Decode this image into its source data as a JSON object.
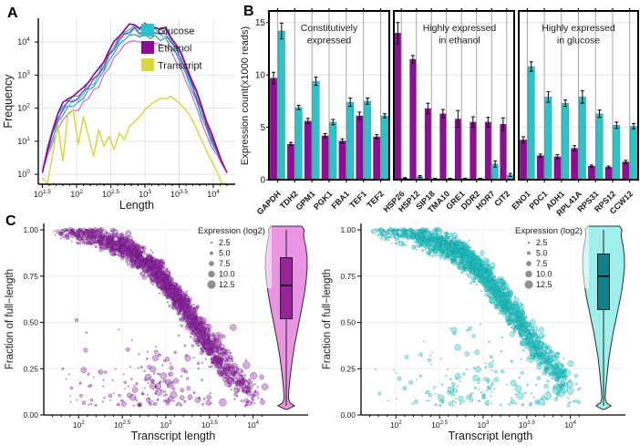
{
  "panels": {
    "a": "A",
    "b": "B",
    "c": "C"
  },
  "colors": {
    "glucose": "#29c4c9",
    "ethanol": "#8f0d96",
    "transcript": "#d6d83f",
    "scatter_ethanol_fill": "#9333a8",
    "scatter_ethanol_stroke": "#5e0a70",
    "scatter_glucose_fill": "#2ec9c9",
    "scatter_glucose_stroke": "#0a9396",
    "violin_ethanol_fill": "#eb94e4",
    "violin_ethanol_box": "#96249b",
    "violin_glucose_fill": "#9ff0ea",
    "violin_glucose_box": "#147f86",
    "legend_dot": "#7d7d7d",
    "grid_light": "#e4e4e4",
    "grid_dark": "#9e9e9e",
    "axis": "#000000"
  },
  "panel_b": {
    "ylabel": "Expression count(x1000 reads)",
    "yticks": [
      0,
      5,
      10,
      15
    ],
    "ylim": [
      0,
      15.5
    ],
    "series_names": [
      "Ethanol",
      "Glucose"
    ]
  },
  "chart_data": [
    {
      "id": "panel_a_read_length_distribution",
      "type": "line",
      "xlabel": "Length",
      "ylabel": "Frequency",
      "x_log10_start": 1.5,
      "x_log10_step": 0.075,
      "n_points": 37,
      "xlim_log10": [
        1.44,
        4.32
      ],
      "ylim_log10": [
        -0.3,
        4.72
      ],
      "xticks_exp": [
        "1.5",
        "2",
        "2.5",
        "3",
        "3.5",
        "4"
      ],
      "yticks_exp": [
        "0",
        "1",
        "2",
        "3",
        "4"
      ],
      "legend": [
        {
          "label": "Glucose",
          "color_key": "glucose"
        },
        {
          "label": "Ethanol",
          "color_key": "ethanol"
        },
        {
          "label": "Transcript",
          "color_key": "transcript"
        }
      ],
      "base_log10_frequency": [
        0.05,
        0.75,
        1.35,
        1.8,
        2.1,
        2.28,
        2.36,
        2.42,
        2.6,
        2.8,
        2.95,
        3.15,
        3.42,
        3.7,
        3.95,
        4.18,
        4.35,
        4.47,
        4.5,
        4.42,
        4.5,
        4.38,
        4.46,
        4.33,
        4.38,
        4.16,
        3.92,
        3.62,
        3.28,
        2.9,
        2.48,
        2.05,
        1.62,
        1.2,
        0.78,
        0.38,
        0.05
      ],
      "series": [
        {
          "name": "Glucose rep 1",
          "color": "#1fb7bd",
          "width": 1.3,
          "offset": -0.05,
          "amp": 0.06,
          "freq": 2.1,
          "phase": 1.1
        },
        {
          "name": "Glucose rep 2",
          "color": "#2ecfd2",
          "width": 1.1,
          "offset": -0.16,
          "amp": 0.08,
          "freq": 2.7,
          "phase": 3.3
        },
        {
          "name": "Glucose rep 3",
          "color": "#179aa8",
          "width": 1.1,
          "offset": -0.27,
          "amp": 0.07,
          "freq": 3.2,
          "phase": 5.2
        },
        {
          "name": "Ethanol rep 3",
          "color": "#c94fc0",
          "width": 1.0,
          "offset": -0.45,
          "amp": 0.06,
          "freq": 2.9,
          "phase": 4.1
        },
        {
          "name": "Ethanol rep 2",
          "color": "#a81fae",
          "width": 1.1,
          "offset": -0.12,
          "amp": 0.07,
          "freq": 2.4,
          "phase": 2.2
        },
        {
          "name": "Ethanol rep 1",
          "color": "#8f0d96",
          "width": 1.7,
          "offset": 0.03,
          "amp": 0.05,
          "freq": 1.9,
          "phase": 0.6
        }
      ],
      "transcript_series": {
        "name": "Transcript",
        "y_log10": [
          -0.1,
          -0.3,
          0.6,
          1.5,
          0.4,
          1.85,
          1.95,
          0.9,
          1.75,
          1.15,
          0.55,
          1.35,
          0.85,
          1.15,
          0.75,
          1.25,
          1.05,
          1.45,
          1.6,
          1.75,
          1.95,
          2.1,
          2.2,
          2.3,
          2.28,
          2.35,
          2.25,
          2.1,
          1.95,
          1.7,
          1.4,
          1.05,
          0.7,
          0.4,
          0.1,
          -0.3,
          -0.3
        ]
      }
    },
    {
      "id": "panel_b_constitutive",
      "type": "bar",
      "title_lines": [
        "Constitutively",
        "expressed"
      ],
      "categories": [
        "GAPDH",
        "TDH2",
        "GPM1",
        "PGK1",
        "FBA1",
        "TEF1",
        "TEF2"
      ],
      "series": [
        {
          "name": "Ethanol",
          "color_key": "ethanol",
          "values": [
            9.7,
            3.4,
            5.6,
            4.2,
            3.7,
            6.1,
            4.1
          ],
          "errors": [
            0.55,
            0.15,
            0.25,
            0.2,
            0.2,
            0.35,
            0.2
          ]
        },
        {
          "name": "Glucose",
          "color_key": "glucose",
          "values": [
            14.2,
            6.9,
            9.4,
            5.5,
            7.4,
            7.5,
            6.1
          ],
          "errors": [
            0.75,
            0.2,
            0.4,
            0.25,
            0.4,
            0.3,
            0.2
          ]
        }
      ]
    },
    {
      "id": "panel_b_ethanol_high",
      "type": "bar",
      "title_lines": [
        "Highly expressed",
        "in ethanol"
      ],
      "categories": [
        "HSP26",
        "HSP12",
        "SIP18",
        "TMA10",
        "GRE1",
        "DDR2",
        "HOR7",
        "CIT2"
      ],
      "series": [
        {
          "name": "Ethanol",
          "color_key": "ethanol",
          "values": [
            14.0,
            11.5,
            6.8,
            6.3,
            5.8,
            5.5,
            5.5,
            5.3
          ],
          "errors": [
            1.0,
            0.35,
            0.5,
            0.4,
            0.8,
            0.5,
            0.45,
            0.6
          ]
        },
        {
          "name": "Glucose",
          "color_key": "glucose",
          "values": [
            0.15,
            0.3,
            0.1,
            0.1,
            0.1,
            0.1,
            1.5,
            0.45
          ],
          "errors": [
            0.05,
            0.1,
            0.04,
            0.04,
            0.04,
            0.04,
            0.3,
            0.15
          ]
        }
      ]
    },
    {
      "id": "panel_b_glucose_high",
      "type": "bar",
      "title_lines": [
        "Highly expressed",
        "in glucose"
      ],
      "categories": [
        "ENO1",
        "PDC1",
        "ADH1",
        "RPL41A",
        "RPS31",
        "RPS12",
        "CCW12"
      ],
      "series": [
        {
          "name": "Ethanol",
          "color_key": "ethanol",
          "values": [
            3.8,
            2.3,
            2.2,
            3.0,
            1.3,
            1.2,
            1.7
          ],
          "errors": [
            0.3,
            0.15,
            0.2,
            0.25,
            0.1,
            0.1,
            0.15
          ]
        },
        {
          "name": "Glucose",
          "color_key": "glucose",
          "values": [
            10.8,
            7.9,
            7.3,
            7.9,
            6.3,
            5.2,
            5.1
          ],
          "errors": [
            0.45,
            0.5,
            0.3,
            0.6,
            0.35,
            0.3,
            0.25
          ]
        }
      ]
    },
    {
      "id": "panel_c_ethanol",
      "type": "scatter+violin",
      "condition": "Ethanol",
      "xlabel": "Transcript length",
      "ylabel": "Fraction of full−length",
      "xticks_exp": [
        "2",
        "2.5",
        "3",
        "3.5",
        "4"
      ],
      "yticks": [
        "0.00",
        "0.25",
        "0.50",
        "0.75",
        "1.00"
      ],
      "xlim_log10": [
        1.6,
        4.15
      ],
      "ylim": [
        0,
        1.035
      ],
      "size_legend": {
        "title": "Expression (log2)",
        "values": [
          "2.5",
          "5.0",
          "7.5",
          "10.0",
          "12.5"
        ]
      },
      "scatter_gen": {
        "seed": 1337,
        "n": 2300,
        "curve_mid_log10": 3.33,
        "curve_slope": 0.36,
        "noise": 0.065,
        "low_frac": 0.075
      },
      "violin": {
        "median": 0.7,
        "q1": 0.52,
        "q3": 0.85,
        "whisker_low": 0.05,
        "whisker_high": 1.0,
        "profile": [
          [
            0.03,
            0.04
          ],
          [
            0.05,
            0.4
          ],
          [
            0.065,
            0.18
          ],
          [
            0.09,
            0.1
          ],
          [
            0.13,
            0.12
          ],
          [
            0.18,
            0.16
          ],
          [
            0.24,
            0.22
          ],
          [
            0.31,
            0.3
          ],
          [
            0.38,
            0.4
          ],
          [
            0.45,
            0.52
          ],
          [
            0.52,
            0.64
          ],
          [
            0.59,
            0.76
          ],
          [
            0.66,
            0.87
          ],
          [
            0.73,
            0.95
          ],
          [
            0.8,
            1.0
          ],
          [
            0.86,
            0.99
          ],
          [
            0.91,
            0.93
          ],
          [
            0.95,
            0.85
          ],
          [
            0.975,
            0.82
          ],
          [
            1.0,
            0.86
          ],
          [
            1.02,
            0.74
          ]
        ]
      }
    },
    {
      "id": "panel_c_glucose",
      "type": "scatter+violin",
      "condition": "Glucose",
      "xlabel": "Transcript length",
      "ylabel": "Fraction of full−length",
      "xticks_exp": [
        "2",
        "2.5",
        "3",
        "3.5",
        "4"
      ],
      "yticks": [
        "0.00",
        "0.25",
        "0.50",
        "0.75",
        "1.00"
      ],
      "xlim_log10": [
        1.6,
        4.15
      ],
      "ylim": [
        0,
        1.035
      ],
      "size_legend": {
        "title": "Expression (log2)",
        "values": [
          "2.5",
          "5.0",
          "7.5",
          "10.0",
          "12.5"
        ]
      },
      "scatter_gen": {
        "seed": 777,
        "n": 2300,
        "curve_mid_log10": 3.42,
        "curve_slope": 0.36,
        "noise": 0.07,
        "low_frac": 0.08
      },
      "violin": {
        "median": 0.75,
        "q1": 0.57,
        "q3": 0.87,
        "whisker_low": 0.05,
        "whisker_high": 1.0,
        "profile": [
          [
            0.03,
            0.04
          ],
          [
            0.05,
            0.36
          ],
          [
            0.065,
            0.15
          ],
          [
            0.09,
            0.08
          ],
          [
            0.13,
            0.1
          ],
          [
            0.18,
            0.14
          ],
          [
            0.24,
            0.19
          ],
          [
            0.31,
            0.26
          ],
          [
            0.38,
            0.36
          ],
          [
            0.45,
            0.47
          ],
          [
            0.52,
            0.6
          ],
          [
            0.59,
            0.73
          ],
          [
            0.66,
            0.85
          ],
          [
            0.73,
            0.94
          ],
          [
            0.8,
            1.0
          ],
          [
            0.86,
            0.99
          ],
          [
            0.91,
            0.94
          ],
          [
            0.95,
            0.87
          ],
          [
            0.975,
            0.84
          ],
          [
            1.0,
            0.88
          ],
          [
            1.02,
            0.76
          ]
        ]
      }
    }
  ]
}
